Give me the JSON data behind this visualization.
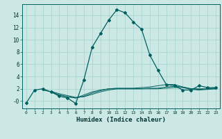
{
  "xlabel": "Humidex (Indice chaleur)",
  "bg_color": "#cce8e4",
  "grid_color": "#aad4d0",
  "line_color": "#006060",
  "xlim": [
    -0.5,
    23.5
  ],
  "ylim": [
    -1.2,
    15.8
  ],
  "xticks": [
    0,
    1,
    2,
    3,
    4,
    5,
    6,
    7,
    8,
    9,
    10,
    11,
    12,
    13,
    14,
    15,
    16,
    17,
    18,
    19,
    20,
    21,
    22,
    23
  ],
  "yticks": [
    0,
    2,
    4,
    6,
    8,
    10,
    12,
    14
  ],
  "ytick_labels": [
    "-0",
    "2",
    "4",
    "6",
    "8",
    "10",
    "12",
    "14"
  ],
  "main_x": [
    0,
    1,
    2,
    3,
    4,
    5,
    6,
    7,
    8,
    9,
    10,
    11,
    12,
    13,
    14,
    15,
    16,
    17,
    18,
    19,
    20,
    21,
    22,
    23
  ],
  "main_y": [
    -0.3,
    1.8,
    2.0,
    1.5,
    0.8,
    0.5,
    -0.4,
    3.5,
    8.8,
    11.0,
    13.2,
    14.9,
    14.4,
    12.9,
    11.7,
    7.5,
    5.0,
    2.7,
    2.5,
    1.8,
    1.8,
    2.5,
    2.2,
    2.2
  ],
  "s1_x": [
    2,
    3,
    4,
    5,
    6,
    7,
    8,
    9,
    10,
    11,
    12,
    13,
    14,
    15,
    16,
    17,
    18,
    19,
    20,
    21,
    22,
    23
  ],
  "s1_y": [
    1.8,
    1.5,
    1.0,
    0.7,
    0.5,
    1.0,
    1.5,
    1.8,
    2.0,
    2.1,
    2.1,
    2.1,
    2.2,
    2.3,
    2.5,
    2.7,
    2.7,
    2.3,
    2.0,
    2.0,
    2.0,
    2.1
  ],
  "s2_x": [
    3,
    4,
    5,
    6,
    7,
    8,
    9,
    10,
    11,
    12,
    13,
    14,
    15,
    16,
    17,
    18,
    19,
    20,
    21,
    22,
    23
  ],
  "s2_y": [
    1.5,
    1.0,
    0.7,
    0.5,
    0.8,
    1.3,
    1.7,
    2.0,
    2.0,
    2.0,
    2.0,
    2.0,
    2.1,
    2.1,
    2.3,
    2.4,
    2.3,
    2.0,
    1.9,
    2.0,
    2.0
  ],
  "s3_x": [
    3,
    4,
    5,
    6,
    7,
    8,
    9,
    10,
    11,
    12,
    13,
    14,
    15,
    16,
    17,
    18,
    19,
    20,
    21,
    22,
    23
  ],
  "s3_y": [
    1.6,
    1.2,
    0.9,
    0.6,
    0.7,
    1.1,
    1.5,
    1.8,
    2.0,
    2.0,
    2.0,
    2.0,
    2.0,
    2.0,
    2.1,
    2.2,
    2.2,
    1.9,
    1.8,
    1.9,
    2.0
  ]
}
